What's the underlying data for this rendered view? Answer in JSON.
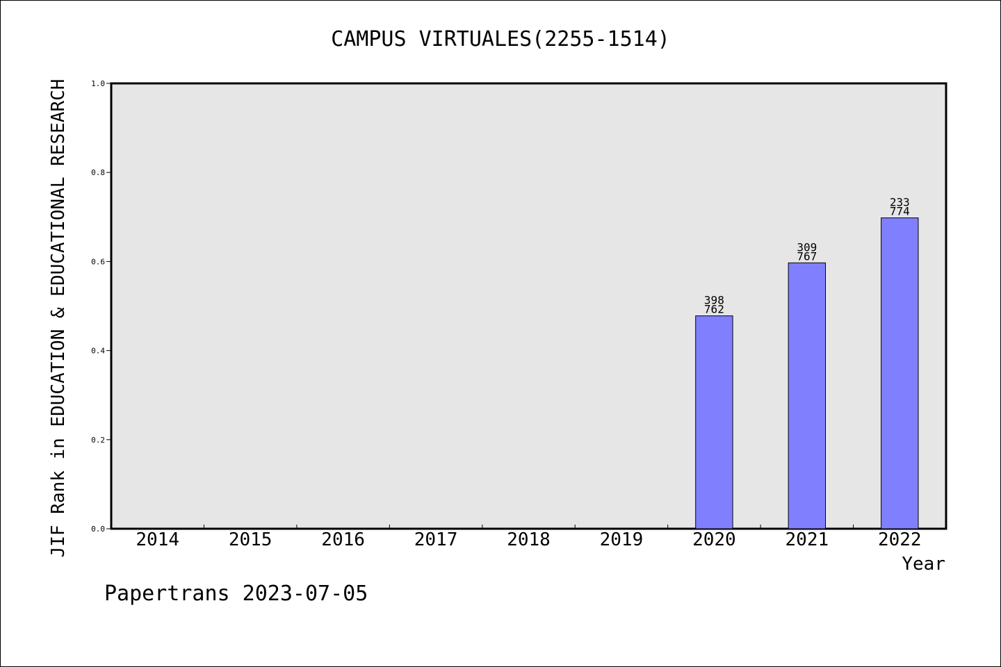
{
  "chart_data": {
    "type": "bar",
    "title": "CAMPUS VIRTUALES(2255-1514)",
    "ylabel": "JIF Rank in EDUCATION & EDUCATIONAL RESEARCH",
    "xlabel": "Year",
    "categories": [
      "2014",
      "2015",
      "2016",
      "2017",
      "2018",
      "2019",
      "2020",
      "2021",
      "2022"
    ],
    "values": [
      null,
      null,
      null,
      null,
      null,
      null,
      0.478,
      0.597,
      0.698
    ],
    "bar_labels": [
      null,
      null,
      null,
      null,
      null,
      null,
      {
        "rank": "398",
        "total": "762"
      },
      {
        "rank": "309",
        "total": "767"
      },
      {
        "rank": "233",
        "total": "774"
      }
    ],
    "ylim": [
      0,
      1.0
    ],
    "yticks": [
      "0.0",
      "0.2",
      "0.4",
      "0.6",
      "0.8",
      "1.0"
    ],
    "grid": false,
    "plot_bg": "#e6e6e6",
    "bar_color": "#8080ff"
  },
  "footer": "Papertrans 2023-07-05"
}
